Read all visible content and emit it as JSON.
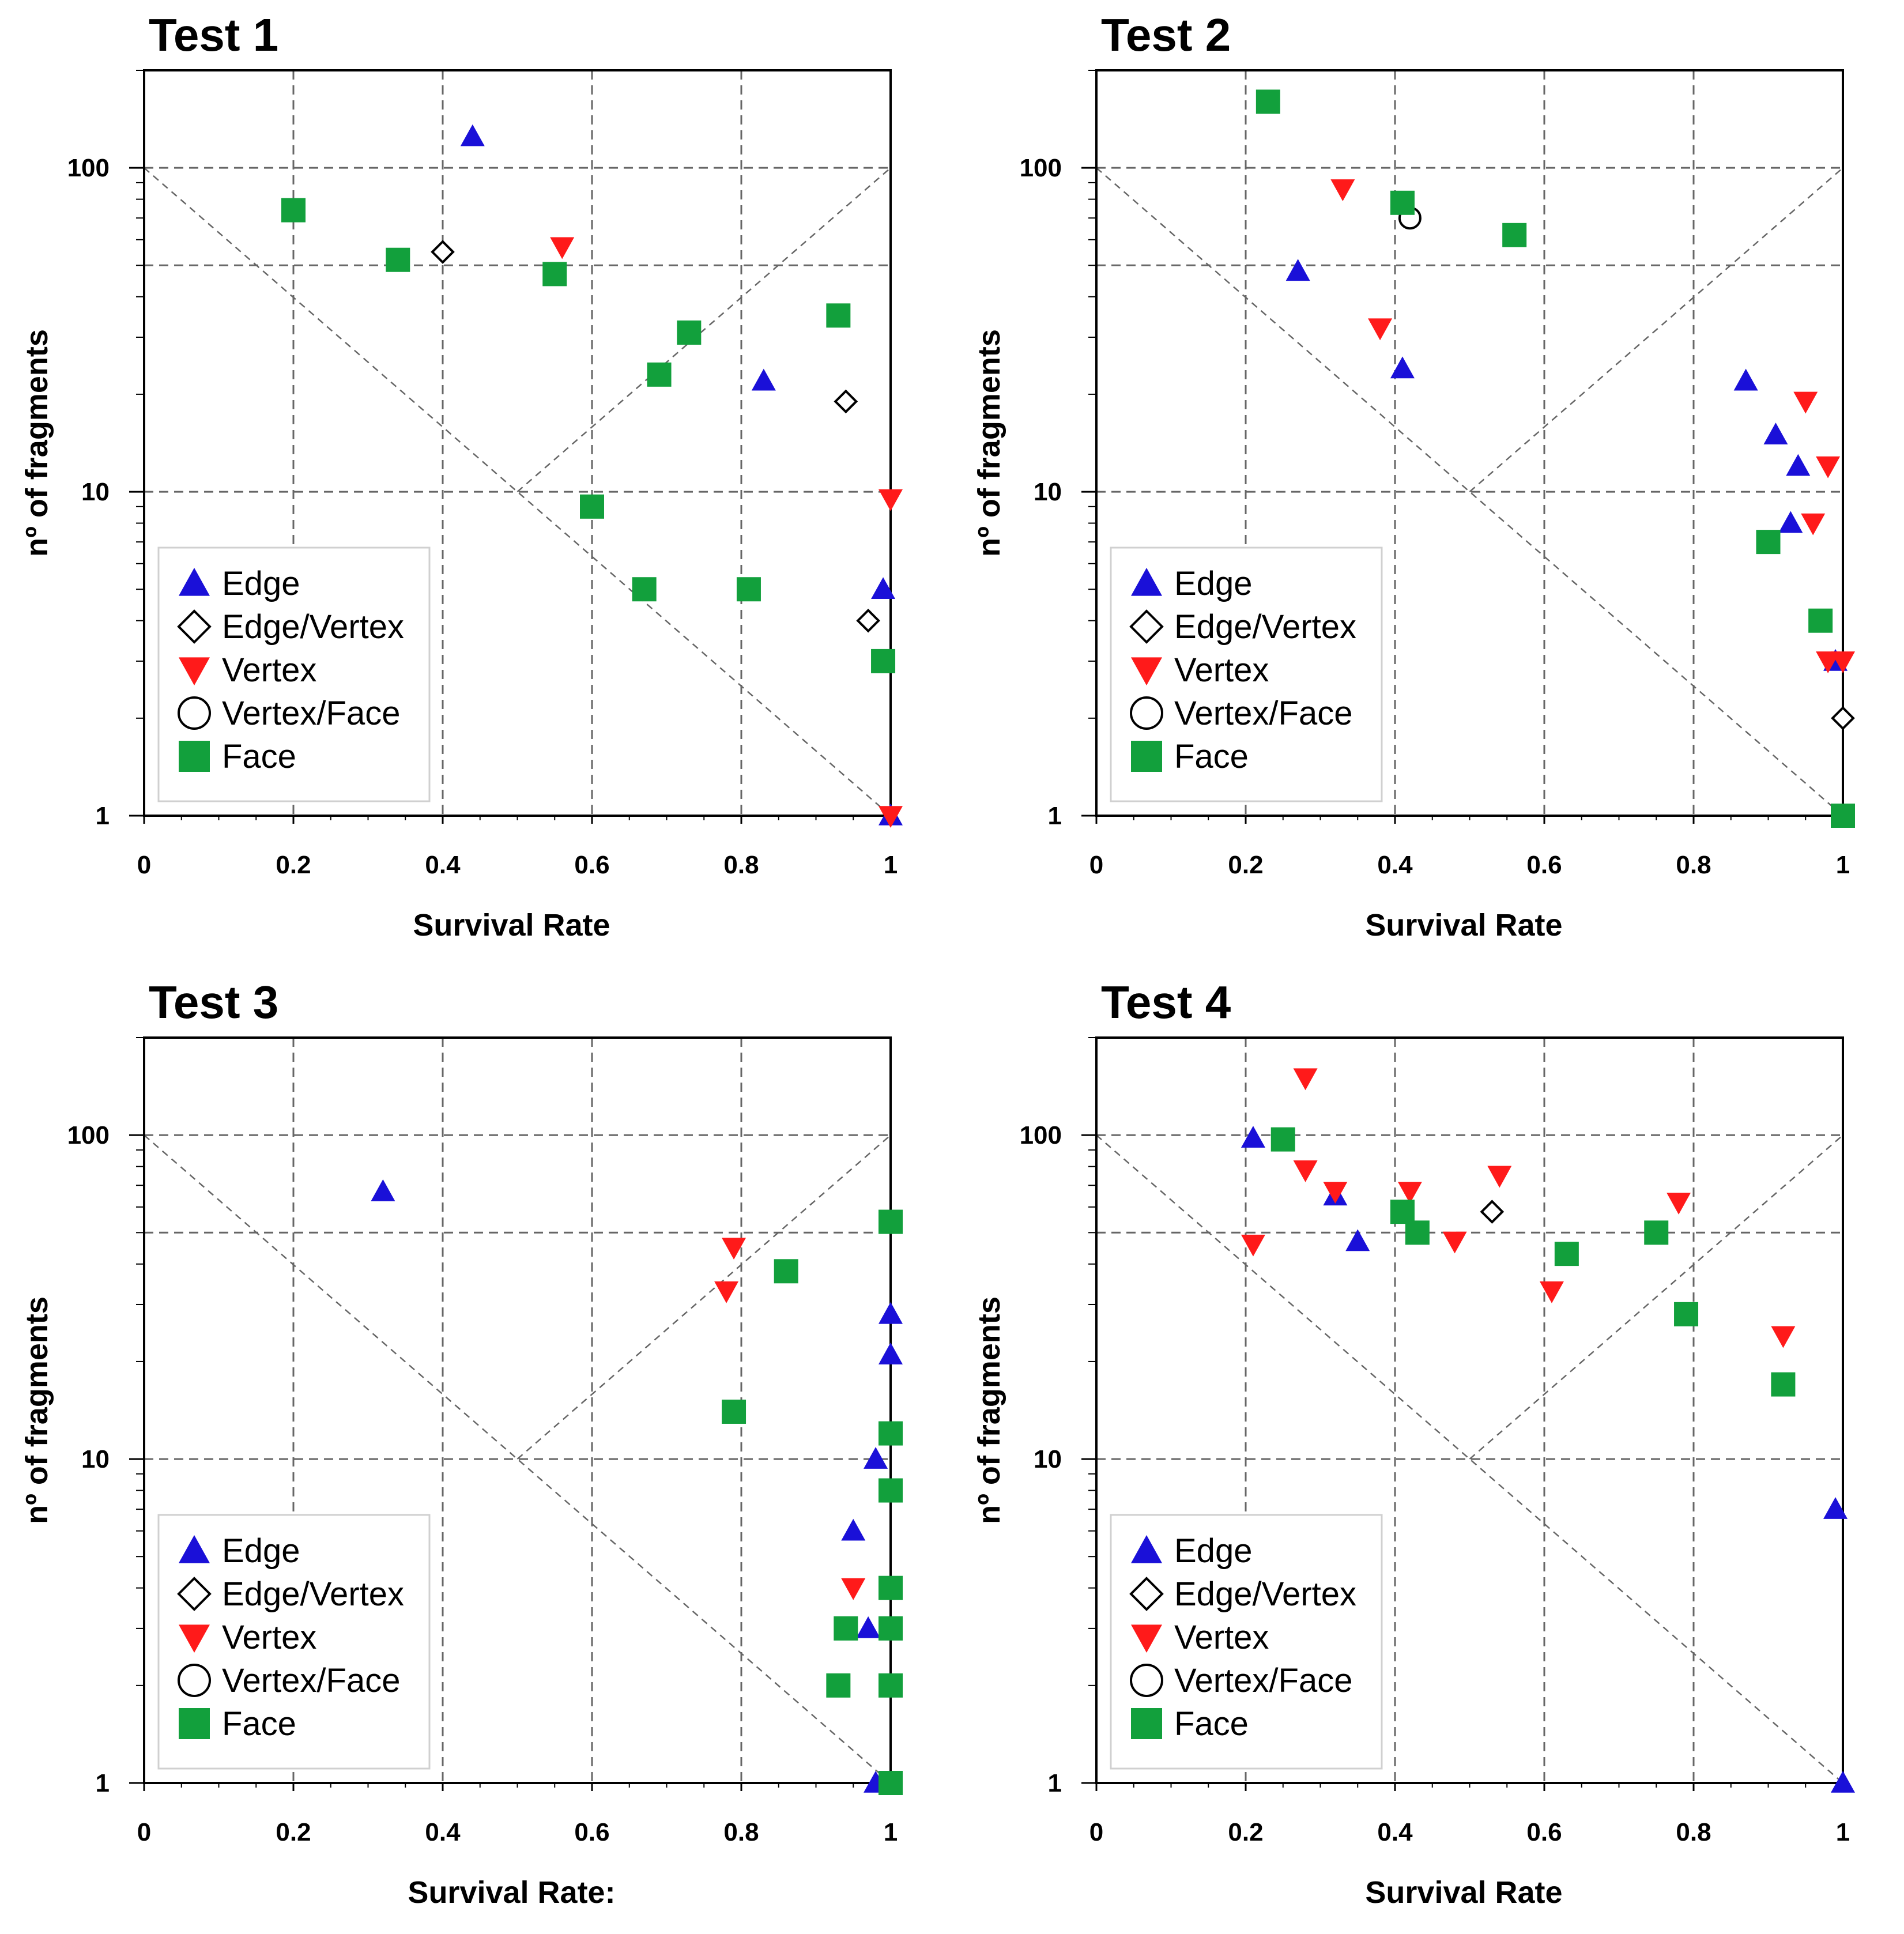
{
  "colors": {
    "edge": "#1a10d8",
    "vertex": "#ff1a1a",
    "face": "#12a03c",
    "grid": "#666666",
    "axis": "#000000"
  },
  "chart_data": [
    {
      "type": "scatter",
      "title": "Test 1",
      "xlabel": "Survival Rate",
      "ylabel": "nº of fragments",
      "xlim": [
        0,
        1
      ],
      "ylim": [
        1,
        200
      ],
      "yscale": "log",
      "xticks": [
        "0",
        "0.2",
        "0.4",
        "0.6",
        "0.8",
        "1"
      ],
      "yticks": [
        "1",
        "10",
        "100"
      ],
      "legend": [
        "Edge",
        "Edge/Vertex",
        "Vertex",
        "Vertex/Face",
        "Face"
      ],
      "series": [
        {
          "name": "Edge",
          "points": [
            [
              0.44,
              125
            ],
            [
              0.83,
              22
            ],
            [
              0.99,
              5
            ],
            [
              1.0,
              1
            ]
          ]
        },
        {
          "name": "Edge/Vertex",
          "points": [
            [
              0.4,
              55
            ],
            [
              0.94,
              19
            ],
            [
              0.97,
              4
            ]
          ]
        },
        {
          "name": "Vertex",
          "points": [
            [
              0.56,
              57
            ],
            [
              1.0,
              9.5
            ],
            [
              1.0,
              1
            ]
          ]
        },
        {
          "name": "Vertex/Face",
          "points": []
        },
        {
          "name": "Face",
          "points": [
            [
              0.2,
              74
            ],
            [
              0.34,
              52
            ],
            [
              0.55,
              47
            ],
            [
              0.73,
              31
            ],
            [
              0.69,
              23
            ],
            [
              0.93,
              35
            ],
            [
              0.6,
              9
            ],
            [
              0.67,
              5
            ],
            [
              0.81,
              5
            ],
            [
              0.99,
              3
            ]
          ]
        }
      ]
    },
    {
      "type": "scatter",
      "title": "Test 2",
      "xlabel": "Survival Rate",
      "ylabel": "nº of fragments",
      "xlim": [
        0,
        1
      ],
      "ylim": [
        1,
        200
      ],
      "yscale": "log",
      "xticks": [
        "0",
        "0.2",
        "0.4",
        "0.6",
        "0.8",
        "1"
      ],
      "yticks": [
        "1",
        "10",
        "100"
      ],
      "legend": [
        "Edge",
        "Edge/Vertex",
        "Vertex",
        "Vertex/Face",
        "Face"
      ],
      "series": [
        {
          "name": "Edge",
          "points": [
            [
              0.27,
              48
            ],
            [
              0.41,
              24
            ],
            [
              0.87,
              22
            ],
            [
              0.91,
              15
            ],
            [
              0.94,
              12
            ],
            [
              0.93,
              8
            ],
            [
              0.99,
              3
            ],
            [
              1.0,
              1
            ]
          ]
        },
        {
          "name": "Edge/Vertex",
          "points": [
            [
              1.0,
              2
            ]
          ]
        },
        {
          "name": "Vertex",
          "points": [
            [
              0.33,
              86
            ],
            [
              0.38,
              32
            ],
            [
              0.95,
              19
            ],
            [
              0.98,
              12
            ],
            [
              0.96,
              8
            ],
            [
              0.98,
              3
            ],
            [
              1.0,
              3
            ]
          ]
        },
        {
          "name": "Vertex/Face",
          "points": [
            [
              0.42,
              70
            ]
          ]
        },
        {
          "name": "Face",
          "points": [
            [
              0.23,
              160
            ],
            [
              0.41,
              78
            ],
            [
              0.56,
              62
            ],
            [
              0.9,
              7
            ],
            [
              0.97,
              4
            ],
            [
              1.0,
              1
            ]
          ]
        }
      ]
    },
    {
      "type": "scatter",
      "title": "Test 3",
      "xlabel": "Survival Rate:",
      "ylabel": "nº of fragments",
      "xlim": [
        0,
        1
      ],
      "ylim": [
        1,
        200
      ],
      "yscale": "log",
      "xticks": [
        "0",
        "0.2",
        "0.4",
        "0.6",
        "0.8",
        "1"
      ],
      "yticks": [
        "1",
        "10",
        "100"
      ],
      "legend": [
        "Edge",
        "Edge/Vertex",
        "Vertex",
        "Vertex/Face",
        "Face"
      ],
      "series": [
        {
          "name": "Edge",
          "points": [
            [
              0.32,
              67
            ],
            [
              1.0,
              28
            ],
            [
              1.0,
              21
            ],
            [
              0.98,
              10
            ],
            [
              0.95,
              6
            ],
            [
              0.97,
              3
            ],
            [
              1.0,
              3
            ],
            [
              1.0,
              2
            ],
            [
              0.98,
              1
            ]
          ]
        },
        {
          "name": "Edge/Vertex",
          "points": []
        },
        {
          "name": "Vertex",
          "points": [
            [
              0.79,
              45
            ],
            [
              0.78,
              33
            ],
            [
              0.95,
              4
            ]
          ]
        },
        {
          "name": "Vertex/Face",
          "points": []
        },
        {
          "name": "Face",
          "points": [
            [
              1.0,
              54
            ],
            [
              0.86,
              38
            ],
            [
              0.79,
              14
            ],
            [
              1.0,
              12
            ],
            [
              1.0,
              8
            ],
            [
              1.0,
              4
            ],
            [
              0.94,
              3
            ],
            [
              1.0,
              3
            ],
            [
              0.93,
              2
            ],
            [
              1.0,
              2
            ],
            [
              1.0,
              1
            ]
          ]
        }
      ]
    },
    {
      "type": "scatter",
      "title": "Test 4",
      "xlabel": "Survival Rate",
      "ylabel": "nº of fragments",
      "xlim": [
        0,
        1
      ],
      "ylim": [
        1,
        200
      ],
      "yscale": "log",
      "xticks": [
        "0",
        "0.2",
        "0.4",
        "0.6",
        "0.8",
        "1"
      ],
      "yticks": [
        "1",
        "10",
        "100"
      ],
      "legend": [
        "Edge",
        "Edge/Vertex",
        "Vertex",
        "Vertex/Face",
        "Face"
      ],
      "series": [
        {
          "name": "Edge",
          "points": [
            [
              0.21,
              98
            ],
            [
              0.32,
              65
            ],
            [
              0.35,
              47
            ],
            [
              0.99,
              7
            ],
            [
              1.0,
              1
            ]
          ]
        },
        {
          "name": "Edge/Vertex",
          "points": [
            [
              0.53,
              58
            ]
          ]
        },
        {
          "name": "Vertex",
          "points": [
            [
              0.28,
              150
            ],
            [
              0.28,
              78
            ],
            [
              0.32,
              67
            ],
            [
              0.42,
              67
            ],
            [
              0.54,
              75
            ],
            [
              0.21,
              46
            ],
            [
              0.48,
              47
            ],
            [
              0.61,
              33
            ],
            [
              0.78,
              62
            ],
            [
              0.92,
              24
            ]
          ]
        },
        {
          "name": "Vertex/Face",
          "points": []
        },
        {
          "name": "Face",
          "points": [
            [
              0.25,
              97
            ],
            [
              0.41,
              58
            ],
            [
              0.43,
              50
            ],
            [
              0.63,
              43
            ],
            [
              0.75,
              50
            ],
            [
              0.79,
              28
            ],
            [
              0.92,
              17
            ]
          ]
        }
      ]
    }
  ]
}
